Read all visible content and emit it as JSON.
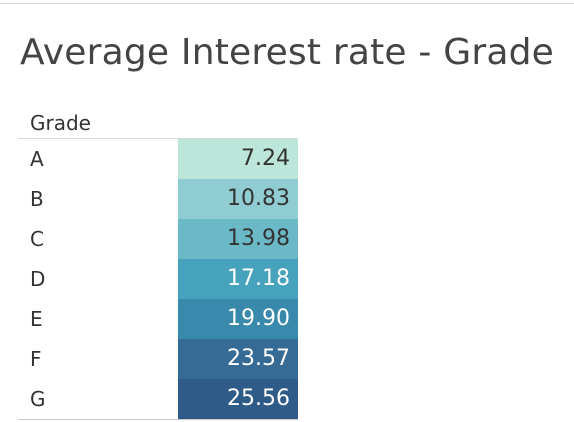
{
  "title": "Average Interest rate - Grade",
  "chart_data": {
    "type": "table",
    "title": "Average Interest rate - Grade",
    "row_header": "Grade",
    "categories": [
      "A",
      "B",
      "C",
      "D",
      "E",
      "F",
      "G"
    ],
    "values": [
      7.24,
      10.83,
      13.98,
      17.18,
      19.9,
      23.57,
      25.56
    ],
    "value_labels": [
      "7.24",
      "10.83",
      "13.98",
      "17.18",
      "19.90",
      "23.57",
      "25.56"
    ],
    "cell_colors": [
      "#bde6da",
      "#8fcdd2",
      "#6bb8c7",
      "#46a2bd",
      "#3889ab",
      "#356b94",
      "#2f5b88"
    ],
    "text_colors": [
      "#333333",
      "#333333",
      "#333333",
      "#ffffff",
      "#ffffff",
      "#ffffff",
      "#ffffff"
    ],
    "color_encoding": "sequential teal-blue heatmap by value"
  }
}
